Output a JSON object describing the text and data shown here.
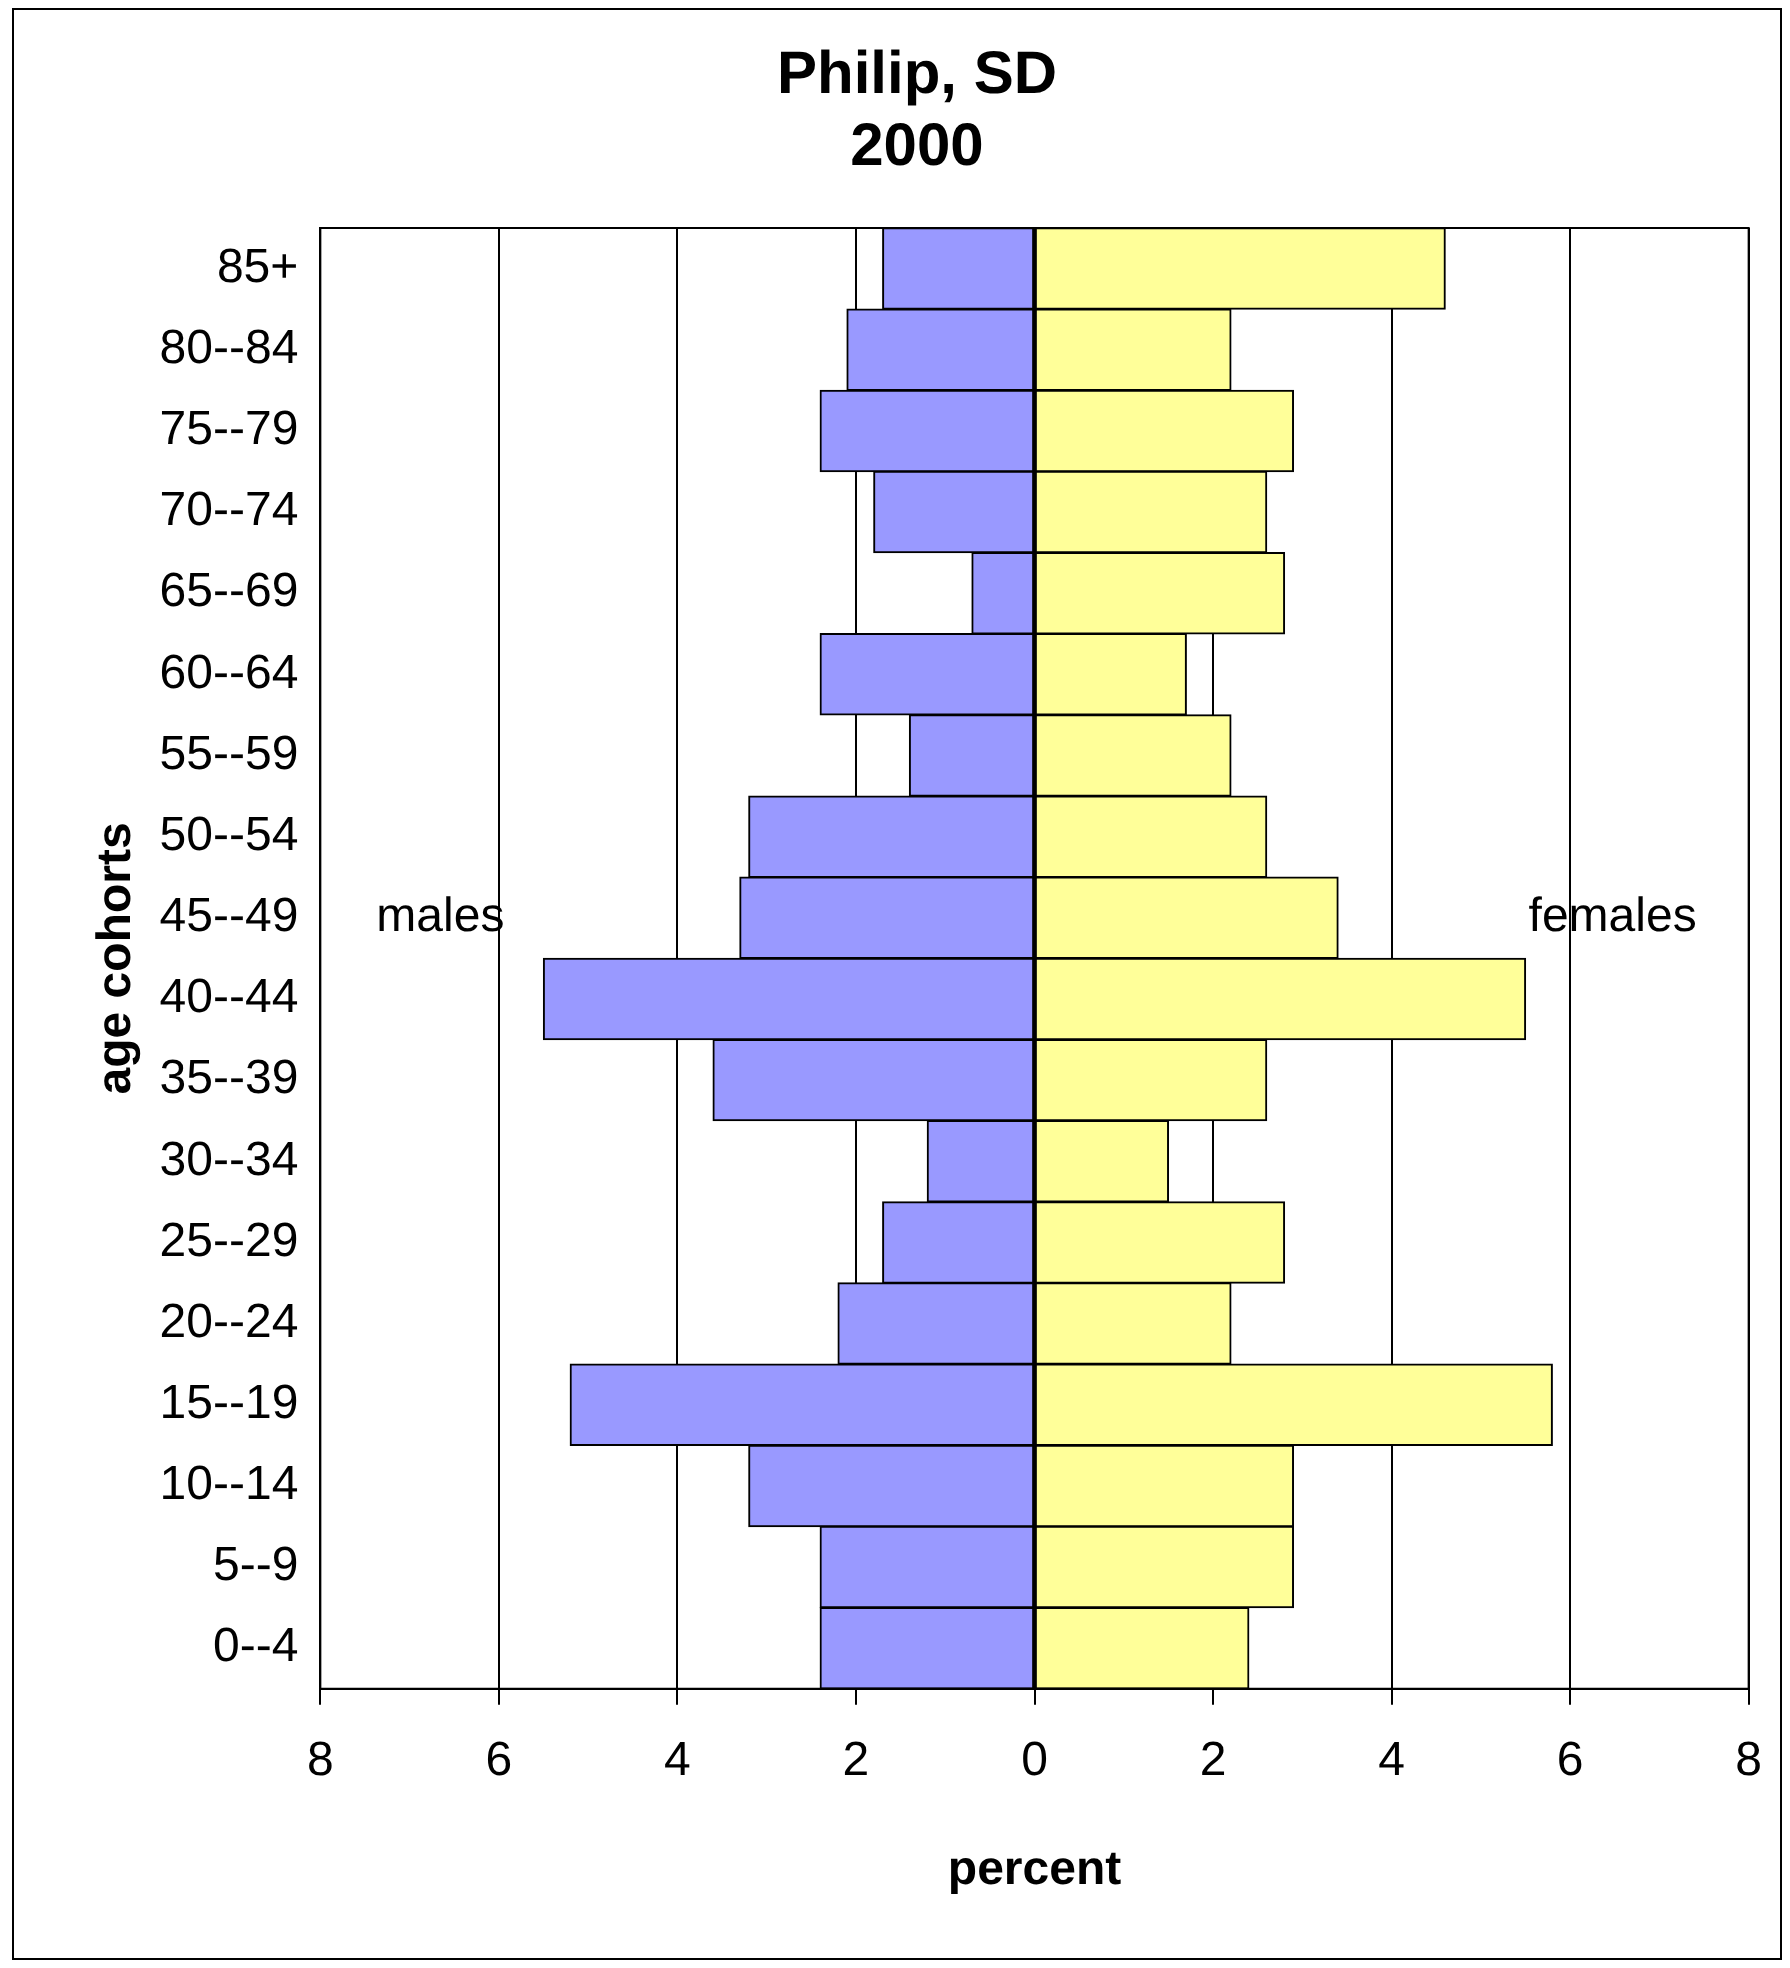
{
  "chart_data": {
    "type": "bar",
    "orientation": "horizontal",
    "stacked": true,
    "title": "Philip, SD\n2000",
    "xlabel": "percent",
    "ylabel": "age cohorts",
    "categories": [
      "85+",
      "80--84",
      "75--79",
      "70--74",
      "65--69",
      "60--64",
      "55--59",
      "50--54",
      "45--49",
      "40--44",
      "35--39",
      "30--34",
      "25--29",
      "20--24",
      "15--19",
      "10--14",
      "5--9",
      "0--4"
    ],
    "series": [
      {
        "name": "males",
        "color": "#9999ff",
        "values": [
          -1.7,
          -2.1,
          -2.4,
          -1.8,
          -0.7,
          -2.4,
          -1.4,
          -3.2,
          -3.3,
          -5.5,
          -3.6,
          -1.2,
          -1.7,
          -2.2,
          -5.2,
          -3.2,
          -2.4,
          -2.4
        ]
      },
      {
        "name": "females",
        "color": "#ffff99",
        "values": [
          4.6,
          2.2,
          2.9,
          2.6,
          2.8,
          1.7,
          2.2,
          2.6,
          3.4,
          5.5,
          2.6,
          1.5,
          2.8,
          2.2,
          5.8,
          2.9,
          2.9,
          2.4
        ]
      }
    ],
    "xlim": [
      -8,
      8
    ],
    "xticks": [
      {
        "value": -8,
        "label": "8"
      },
      {
        "value": -6,
        "label": "6"
      },
      {
        "value": -4,
        "label": "4"
      },
      {
        "value": -2,
        "label": "2"
      },
      0,
      2,
      4,
      6,
      8
    ],
    "grid": "x",
    "legend": false
  }
}
